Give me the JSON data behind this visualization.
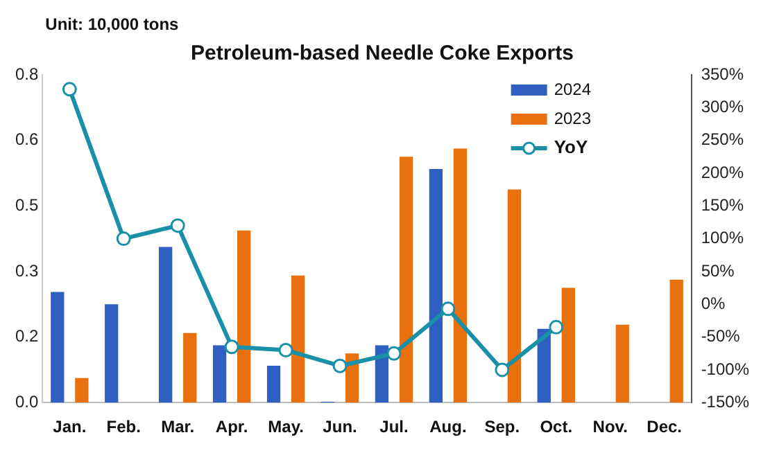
{
  "chart_data": {
    "type": "bar",
    "title": "Petroleum-based Needle Coke Exports",
    "annotations": [
      "Unit: 10,000 tons"
    ],
    "categories": [
      "Jan.",
      "Feb.",
      "Mar.",
      "Apr.",
      "May.",
      "Jun.",
      "Jul.",
      "Aug.",
      "Sep.",
      "Oct.",
      "Nov.",
      "Dec."
    ],
    "series": [
      {
        "name": "2024",
        "color": "#2e5fc1",
        "values": [
          0.27,
          0.24,
          0.38,
          0.14,
          0.09,
          0.002,
          0.14,
          0.57,
          null,
          0.18,
          null,
          null
        ]
      },
      {
        "name": "2023",
        "color": "#e8700e",
        "values": [
          0.06,
          null,
          0.17,
          0.42,
          0.31,
          0.12,
          0.6,
          0.62,
          0.52,
          0.28,
          0.19,
          0.3
        ]
      },
      {
        "name": "YoY",
        "type": "line",
        "axis": "y2",
        "color": "#1a8fa8",
        "values": [
          328,
          100,
          120,
          -65,
          -70,
          -94,
          -75,
          -7,
          -100,
          -35,
          null,
          null
        ]
      }
    ],
    "ylim": [
      0,
      0.8
    ],
    "yticks": [
      {
        "value": 0,
        "label": "0.0"
      },
      {
        "value": 0.16,
        "label": "0.2"
      },
      {
        "value": 0.32,
        "label": "0.3"
      },
      {
        "value": 0.48,
        "label": "0.5"
      },
      {
        "value": 0.64,
        "label": "0.6"
      },
      0.8
    ],
    "y2lim": [
      -150,
      350
    ],
    "y2ticks": [
      {
        "value": -150,
        "label": "-150%"
      },
      {
        "value": -100,
        "label": "-100%"
      },
      {
        "value": -50,
        "label": "-50%"
      },
      {
        "value": 0,
        "label": "0%"
      },
      {
        "value": 50,
        "label": "50%"
      },
      {
        "value": 100,
        "label": "100%"
      },
      {
        "value": 150,
        "label": "150%"
      },
      {
        "value": 200,
        "label": "200%"
      },
      {
        "value": 250,
        "label": "250%"
      },
      {
        "value": 300,
        "label": "300%"
      },
      {
        "value": 350,
        "label": "350%"
      }
    ],
    "grid": false,
    "legend": "top right",
    "marker": "circle",
    "line_style": "solid"
  }
}
